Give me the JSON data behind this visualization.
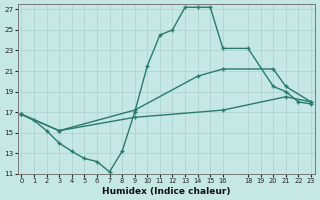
{
  "xlabel": "Humidex (Indice chaleur)",
  "bg_color": "#c5e8e5",
  "line_color": "#2a7a6a",
  "markersize": 2.5,
  "linewidth": 1.0,
  "line1_x": [
    0,
    1,
    2,
    3,
    4,
    5,
    6,
    7,
    8,
    9,
    10,
    11,
    12,
    13,
    14,
    15,
    16,
    18,
    20,
    21,
    22,
    23
  ],
  "line1_y": [
    16.8,
    16.2,
    15.2,
    14.0,
    13.2,
    12.5,
    12.2,
    11.2,
    13.2,
    17.0,
    21.5,
    24.5,
    25.0,
    27.2,
    27.2,
    27.2,
    23.2,
    23.2,
    19.5,
    19.0,
    18.0,
    17.8
  ],
  "line2_x": [
    0,
    3,
    9,
    14,
    16,
    20,
    21,
    23
  ],
  "line2_y": [
    16.8,
    15.2,
    17.2,
    20.5,
    21.2,
    21.2,
    19.5,
    18.0
  ],
  "line3_x": [
    0,
    3,
    9,
    16,
    21,
    23
  ],
  "line3_y": [
    16.8,
    15.2,
    16.5,
    17.2,
    18.5,
    18.0
  ],
  "xlim": [
    -0.3,
    23.3
  ],
  "ylim": [
    11,
    27.5
  ],
  "xticks": [
    0,
    1,
    2,
    3,
    4,
    5,
    6,
    7,
    8,
    9,
    10,
    11,
    12,
    13,
    14,
    15,
    16,
    18,
    19,
    20,
    21,
    22,
    23
  ],
  "yticks": [
    11,
    13,
    15,
    17,
    19,
    21,
    23,
    25,
    27
  ],
  "grid_color": "#b0d4d0",
  "grid_alpha": 1.0
}
